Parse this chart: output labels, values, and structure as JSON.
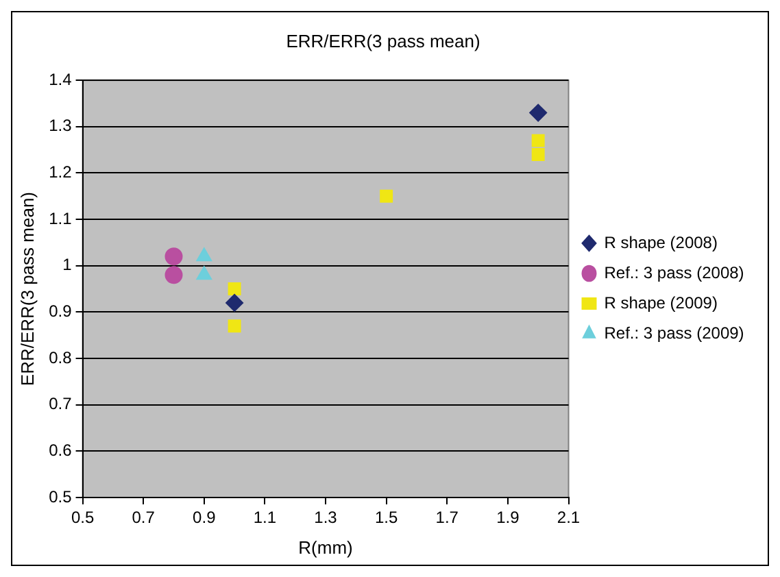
{
  "chart_data": {
    "type": "scatter",
    "title": "ERR/ERR(3 pass mean)",
    "xlabel": "R(mm)",
    "ylabel": "ERR/ERR(3 pass mean)",
    "xlim": [
      0.5,
      2.1
    ],
    "xticks": [
      0.5,
      0.7,
      0.9,
      1.1,
      1.3,
      1.5,
      1.7,
      1.9,
      2.1
    ],
    "ylim": [
      0.5,
      1.4
    ],
    "yticks": [
      0.5,
      0.6,
      0.7,
      0.8,
      0.9,
      1,
      1.1,
      1.2,
      1.3,
      1.4
    ],
    "grid": "y",
    "legend": "right",
    "series": [
      {
        "name": "R shape (2008)",
        "color": "#1f2a6e",
        "marker": "diamond",
        "x": [
          1.0,
          2.0
        ],
        "values": [
          0.92,
          1.33
        ]
      },
      {
        "name": "Ref.: 3 pass (2008)",
        "color": "#b94fa0",
        "marker": "circle",
        "x": [
          0.8,
          0.8
        ],
        "values": [
          1.02,
          0.98
        ]
      },
      {
        "name": "R shape (2009)",
        "color": "#f0e614",
        "marker": "square",
        "x": [
          1.0,
          1.0,
          1.5,
          2.0,
          2.0
        ],
        "values": [
          0.95,
          0.87,
          1.15,
          1.27,
          1.24
        ]
      },
      {
        "name": "Ref.: 3 pass (2009)",
        "color": "#6dcfdc",
        "marker": "triangle",
        "x": [
          0.9,
          0.9
        ],
        "values": [
          1.02,
          0.98
        ]
      }
    ]
  }
}
